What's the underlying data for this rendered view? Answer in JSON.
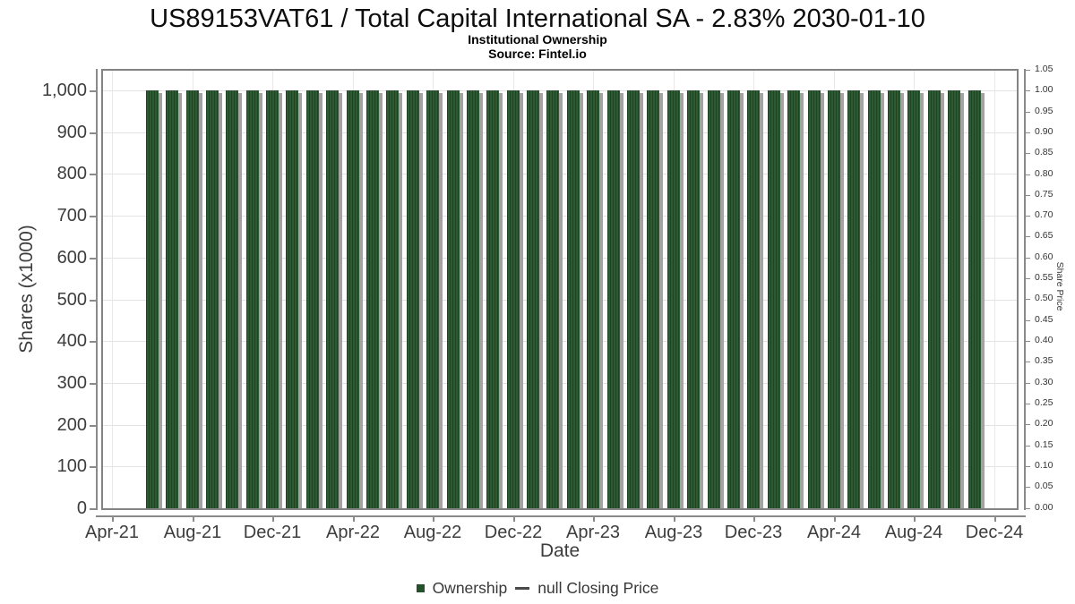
{
  "chart_data": {
    "type": "bar",
    "title": "US89153VAT61 / Total Capital International SA - 2.83% 2030-01-10",
    "subtitle": "Institutional Ownership",
    "source": "Source: Fintel.io",
    "xlabel": "Date",
    "ylabel_left": "Shares (x1000)",
    "ylabel_right": "Share Price",
    "legend_position": "bottom",
    "grid": true,
    "x_axis": {
      "start_month": "Apr-21",
      "end_month": "Dec-24",
      "tick_labels": [
        "Apr-21",
        "Aug-21",
        "Dec-21",
        "Apr-22",
        "Aug-22",
        "Dec-22",
        "Apr-23",
        "Aug-23",
        "Dec-23",
        "Apr-24",
        "Aug-24",
        "Dec-24"
      ]
    },
    "left_axis": {
      "title": "Shares (x1000)",
      "min": 0,
      "max": 1050,
      "tick_values": [
        0,
        100,
        200,
        300,
        400,
        500,
        600,
        700,
        800,
        900,
        1000
      ],
      "tick_labels": [
        "0",
        "100",
        "200",
        "300",
        "400",
        "500",
        "600",
        "700",
        "800",
        "900",
        "1,000"
      ]
    },
    "right_axis": {
      "title": "Share Price",
      "min": 0,
      "max": 1.05,
      "tick_labels": [
        "0.00",
        "0.05",
        "0.10",
        "0.15",
        "0.20",
        "0.25",
        "0.30",
        "0.35",
        "0.40",
        "0.45",
        "0.50",
        "0.55",
        "0.60",
        "0.65",
        "0.70",
        "0.75",
        "0.80",
        "0.85",
        "0.90",
        "0.95",
        "1.00",
        "1.05"
      ]
    },
    "categories": [
      "Jun-21",
      "Jul-21",
      "Aug-21",
      "Sep-21",
      "Oct-21",
      "Nov-21",
      "Dec-21",
      "Jan-22",
      "Feb-22",
      "Mar-22",
      "Apr-22",
      "May-22",
      "Jun-22",
      "Jul-22",
      "Aug-22",
      "Sep-22",
      "Oct-22",
      "Nov-22",
      "Dec-22",
      "Jan-23",
      "Feb-23",
      "Mar-23",
      "Apr-23",
      "May-23",
      "Jun-23",
      "Jul-23",
      "Aug-23",
      "Sep-23",
      "Oct-23",
      "Nov-23",
      "Dec-23",
      "Jan-24",
      "Feb-24",
      "Mar-24",
      "Apr-24",
      "May-24",
      "Jun-24",
      "Jul-24",
      "Aug-24",
      "Sep-24",
      "Oct-24",
      "Nov-24"
    ],
    "series": [
      {
        "name": "Ownership",
        "type": "bar",
        "color": "#2d5a33",
        "values": [
          1000,
          1000,
          1000,
          1000,
          1000,
          1000,
          1000,
          1000,
          1000,
          1000,
          1000,
          1000,
          1000,
          1000,
          1000,
          1000,
          1000,
          1000,
          1000,
          1000,
          1000,
          1000,
          1000,
          1000,
          1000,
          1000,
          1000,
          1000,
          1000,
          1000,
          1000,
          1000,
          1000,
          1000,
          1000,
          1000,
          1000,
          1000,
          1000,
          1000,
          1000,
          1000
        ]
      },
      {
        "name": "null Closing Price",
        "type": "line",
        "color": "#4a4a4a",
        "values": []
      }
    ]
  },
  "colors": {
    "background": "#ffffff",
    "bar_fill": "#2d5a33",
    "bar_stripe": "#1e4424",
    "bar_shadow": "#a3a3a3",
    "frame": "#838383",
    "grid_h": "#e3e3e3",
    "grid_v": "#e8e8e8",
    "axis": "#8a8a8a",
    "tick_text": "#3d3d3d",
    "legend_text": "#383838",
    "legend_swatch": "#24502a",
    "legend_dash": "#4a4a4a"
  }
}
